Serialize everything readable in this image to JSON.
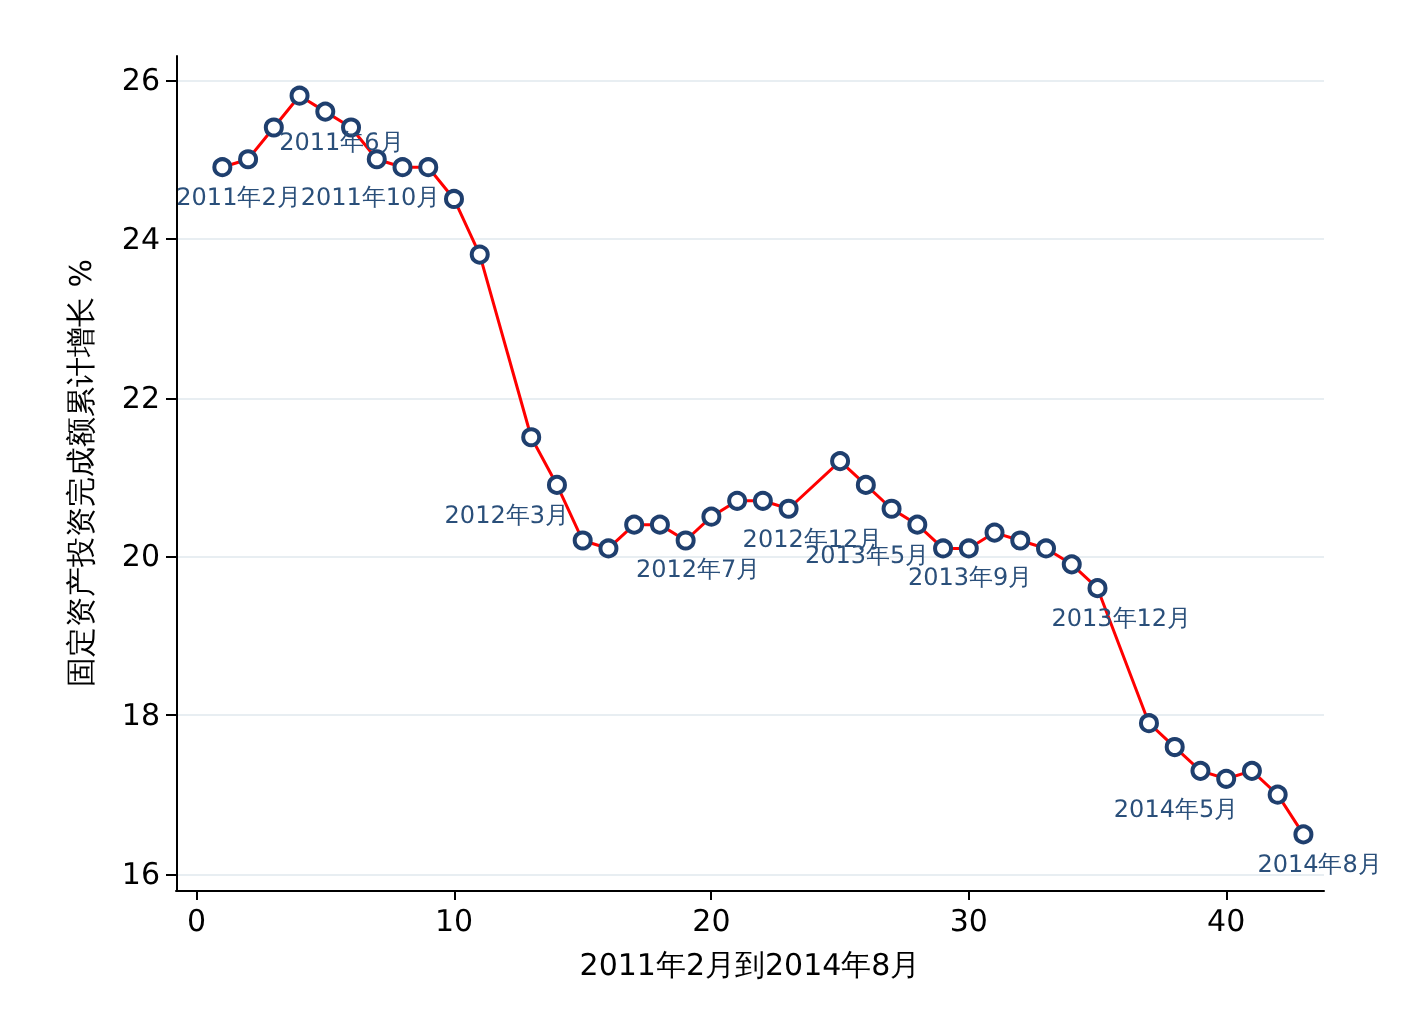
{
  "chart_data": {
    "type": "line",
    "xlabel": "2011年2月到2014年8月",
    "ylabel": "固定资产投资完成额累计增长 %",
    "x": [
      1,
      2,
      3,
      4,
      5,
      6,
      7,
      8,
      9,
      10,
      11,
      13,
      14,
      15,
      16,
      17,
      18,
      19,
      20,
      21,
      22,
      23,
      25,
      26,
      27,
      28,
      29,
      30,
      31,
      32,
      33,
      34,
      35,
      37,
      38,
      39,
      40,
      41,
      42,
      43
    ],
    "series": [
      {
        "color": "#ff0000",
        "values": [
          24.9,
          25.0,
          25.4,
          25.8,
          25.6,
          25.4,
          25.0,
          24.9,
          24.9,
          24.5,
          23.8,
          21.5,
          20.9,
          20.2,
          20.1,
          20.4,
          20.4,
          20.2,
          20.5,
          20.7,
          20.7,
          20.6,
          21.2,
          20.9,
          20.6,
          20.4,
          20.1,
          20.1,
          20.3,
          20.2,
          20.1,
          19.9,
          19.6,
          17.9,
          17.6,
          17.3,
          17.2,
          17.3,
          17.0,
          16.5
        ]
      }
    ],
    "annotations": [
      {
        "text": "2011年2月",
        "x": 1,
        "y": 24.9
      },
      {
        "text": "2011年6月",
        "x": 5,
        "y": 25.6
      },
      {
        "text": "2011年10月",
        "x": 9,
        "y": 24.9
      },
      {
        "text": "2012年3月",
        "x": 14,
        "y": 20.9
      },
      {
        "text": "2012年7月",
        "x": 18,
        "y": 20.4
      },
      {
        "text": "2012年12月",
        "x": 23,
        "y": 20.6
      },
      {
        "text": "2013年5月",
        "x": 28,
        "y": 20.4
      },
      {
        "text": "2013年9月",
        "x": 32,
        "y": 20.2
      },
      {
        "text": "2013年12月",
        "x": 35,
        "y": 19.6
      },
      {
        "text": "2014年5月",
        "x": 40,
        "y": 17.2
      },
      {
        "text": "2014年8月",
        "x": 43,
        "y": 16.5
      }
    ],
    "xlim": [
      -0.8,
      43.8
    ],
    "xticks": [
      0,
      10,
      20,
      30,
      40
    ],
    "ylim": [
      15.8,
      26.3
    ],
    "yticks": [
      16,
      18,
      20,
      22,
      24,
      26
    ],
    "grid": "y",
    "marker": "circle",
    "line_style": "solid"
  }
}
